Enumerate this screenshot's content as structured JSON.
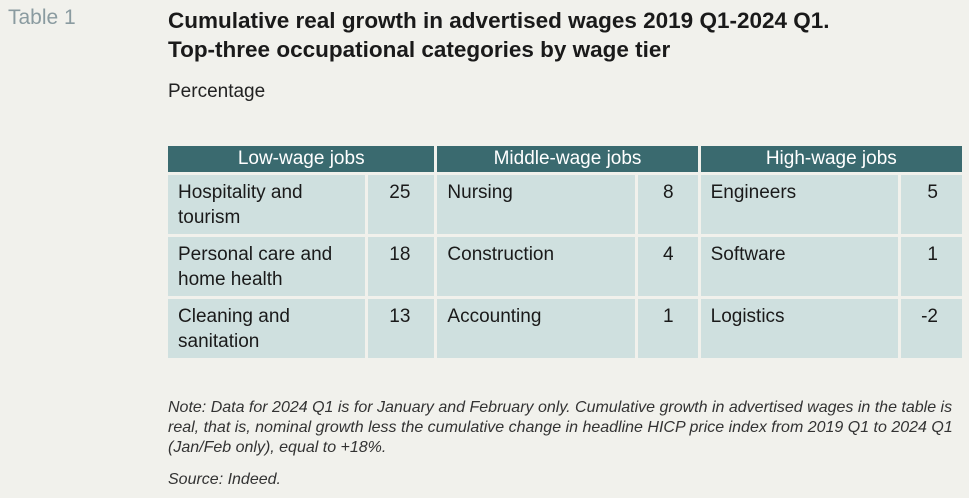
{
  "table_label": "Table 1",
  "title_line1": "Cumulative real growth in advertised wages 2019 Q1-2024 Q1.",
  "title_line2": "Top-three occupational categories by wage tier",
  "subtitle": "Percentage",
  "table": {
    "headers": [
      "Low-wage jobs",
      "Middle-wage jobs",
      "High-wage jobs"
    ],
    "rows": [
      {
        "low_name": "Hospitality and tourism",
        "low_value": "25",
        "mid_name": "Nursing",
        "mid_value": "8",
        "high_name": "Engineers",
        "high_value": "5"
      },
      {
        "low_name": "Personal care and home health",
        "low_value": "18",
        "mid_name": "Construction",
        "mid_value": "4",
        "high_name": "Software",
        "high_value": "1"
      },
      {
        "low_name": "Cleaning and sanitation",
        "low_value": "13",
        "mid_name": "Accounting",
        "mid_value": "1",
        "high_name": "Logistics",
        "high_value": "-2"
      }
    ]
  },
  "note": "Note: Data for 2024 Q1 is for January and February only. Cumulative growth in advertised wages in the table is real, that is, nominal growth less the cumulative change in headline HICP price index from 2019 Q1 to 2024 Q1 (Jan/Feb only), equal to +18%.",
  "source": "Source: Indeed.",
  "colors": {
    "header_bg": "#3a6a6f",
    "cell_bg": "#cfe0df",
    "page_bg": "#f1f1ec",
    "label_color": "#8a9ba0"
  }
}
